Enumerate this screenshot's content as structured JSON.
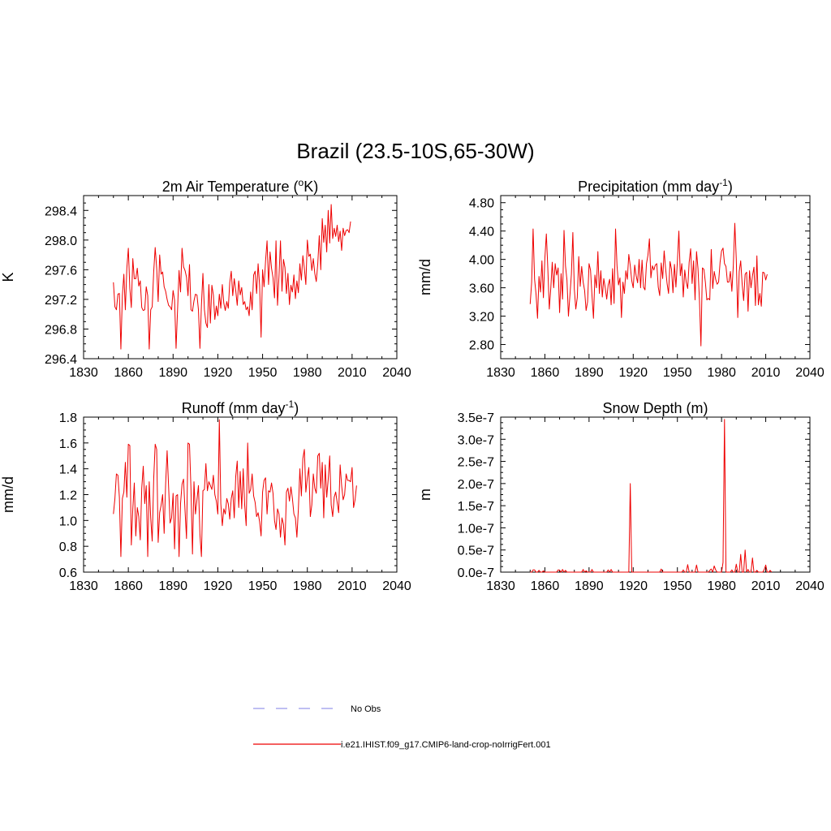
{
  "figure": {
    "title": "Brazil (23.5-10S,65-30W)"
  },
  "legend": {
    "entries": [
      {
        "label": "No Obs",
        "color": "#aaaaee",
        "style": "dashed"
      },
      {
        "label": "i.e21.IHIST.f09_g17.CMIP6-land-crop-noIrrigFert.001",
        "color": "#ee0000",
        "style": "solid"
      }
    ]
  },
  "chart_data": [
    {
      "type": "line",
      "title": "2m Air Temperature (",
      "title_sup": "o",
      "title_suffix": "K)",
      "ylabel": "K",
      "xlim": [
        1830,
        2040
      ],
      "ylim": [
        296.4,
        298.6
      ],
      "xticks": [
        1830,
        1860,
        1890,
        1920,
        1950,
        1980,
        2010,
        2040
      ],
      "xtick_labels": [
        "1830",
        "1860",
        "1890",
        "1920",
        "1950",
        "1980",
        "2010",
        "2040"
      ],
      "yticks": [
        296.4,
        296.8,
        297.2,
        297.6,
        298.0,
        298.4
      ],
      "ytick_labels": [
        "296.4",
        "296.8",
        "297.2",
        "297.6",
        "298.0",
        "298.4"
      ],
      "series": [
        {
          "color": "#ee0000",
          "x_start": 1850,
          "values": [
            297.43,
            297.1,
            297.06,
            297.27,
            297.28,
            296.53,
            297.25,
            297.54,
            297.06,
            297.62,
            297.89,
            297.35,
            297.09,
            297.75,
            297.48,
            297.48,
            297.62,
            297.38,
            297.45,
            297.09,
            297.05,
            297.06,
            297.37,
            297.25,
            296.53,
            297.06,
            297.1,
            297.57,
            297.9,
            297.62,
            297.17,
            297.8,
            297.54,
            297.57,
            297.37,
            297.31,
            297.2,
            297.12,
            297.1,
            297.06,
            297.32,
            297.19,
            296.54,
            297.06,
            297.59,
            297.3,
            297.89,
            297.64,
            297.59,
            297.5,
            297.25,
            297.67,
            297.06,
            297.04,
            297.18,
            297.27,
            297.26,
            297.06,
            296.54,
            297.12,
            297.55,
            297.06,
            296.88,
            296.82,
            297.4,
            296.88,
            297.39,
            297.26,
            296.93,
            297.11,
            296.98,
            297.27,
            297.08,
            297.4,
            297.15,
            297.05,
            297.17,
            297.08,
            297.43,
            297.58,
            297.25,
            297.48,
            297.32,
            297.12,
            297.45,
            297.26,
            297.36,
            297.13,
            297.17,
            297.06,
            297.1,
            296.98,
            297.3,
            297.06,
            297.53,
            297.58,
            297.28,
            297.68,
            297.39,
            296.69,
            297.6,
            297.37,
            297.72,
            297.99,
            297.4,
            297.84,
            297.62,
            297.49,
            297.22,
            297.99,
            297.12,
            297.51,
            297.99,
            297.31,
            297.74,
            297.63,
            297.28,
            297.55,
            297.13,
            297.39,
            297.3,
            297.53,
            297.21,
            297.45,
            297.29,
            297.68,
            297.46,
            297.79,
            297.62,
            297.4,
            298.0,
            297.78,
            297.81,
            297.59,
            297.75,
            297.55,
            297.44,
            297.68,
            298.06,
            297.6,
            298.29,
            297.97,
            298.2,
            297.84,
            298.4,
            297.96,
            298.48,
            298.02,
            298.16,
            298.05,
            298.2,
            297.98,
            298.12,
            297.86,
            298.16,
            298.06,
            298.13,
            298.14,
            298.1,
            298.25
          ]
        }
      ]
    },
    {
      "type": "line",
      "title": "Precipitation (mm day",
      "title_sup": "-1",
      "title_suffix": ")",
      "ylabel": "mm/d",
      "xlim": [
        1830,
        2040
      ],
      "ylim": [
        2.6,
        4.9
      ],
      "xticks": [
        1830,
        1860,
        1890,
        1920,
        1950,
        1980,
        2010,
        2040
      ],
      "xtick_labels": [
        "1830",
        "1860",
        "1890",
        "1920",
        "1950",
        "1980",
        "2010",
        "2040"
      ],
      "yticks": [
        2.8,
        3.2,
        3.6,
        4.0,
        4.4,
        4.8
      ],
      "ytick_labels": [
        "2.80",
        "3.20",
        "3.60",
        "4.00",
        "4.40",
        "4.80"
      ],
      "series": [
        {
          "color": "#ee0000",
          "x_start": 1850,
          "values": [
            3.37,
            3.67,
            4.43,
            3.72,
            3.51,
            3.17,
            3.76,
            3.54,
            3.98,
            3.46,
            4.02,
            4.36,
            3.87,
            3.3,
            3.59,
            3.96,
            3.6,
            3.94,
            3.78,
            3.88,
            3.25,
            3.8,
            3.44,
            4.41,
            3.91,
            3.71,
            3.2,
            3.49,
            3.79,
            4.38,
            3.58,
            3.3,
            3.46,
            4.04,
            3.62,
            3.9,
            3.68,
            3.56,
            3.28,
            3.4,
            3.94,
            3.85,
            3.49,
            3.17,
            3.78,
            3.6,
            4.11,
            3.52,
            3.84,
            3.47,
            3.73,
            3.6,
            3.44,
            3.64,
            3.72,
            3.36,
            3.87,
            3.38,
            4.43,
            3.91,
            3.64,
            3.74,
            3.18,
            3.68,
            3.52,
            3.84,
            3.72,
            4.07,
            3.91,
            3.7,
            3.6,
            3.92,
            3.77,
            3.67,
            4.0,
            3.6,
            3.99,
            3.61,
            3.57,
            3.94,
            4.06,
            4.29,
            3.74,
            3.91,
            3.85,
            3.92,
            3.94,
            3.61,
            3.49,
            3.95,
            3.73,
            4.12,
            3.87,
            3.66,
            3.52,
            3.97,
            3.86,
            3.53,
            3.93,
            3.61,
            3.97,
            4.4,
            3.77,
            3.94,
            3.47,
            3.85,
            3.68,
            3.59,
            3.96,
            4.15,
            3.66,
            3.98,
            3.43,
            4.11,
            3.87,
            3.42,
            2.78,
            3.88,
            3.86,
            3.68,
            3.43,
            3.45,
            3.43,
            4.14,
            3.59,
            3.83,
            3.72,
            3.65,
            3.68,
            3.96,
            4.12,
            4.16,
            3.94,
            3.9,
            3.68,
            3.68,
            3.83,
            3.55,
            3.92,
            4.51,
            4.0,
            3.18,
            3.83,
            3.98,
            3.65,
            3.42,
            3.79,
            3.82,
            3.27,
            3.84,
            3.6,
            3.77,
            3.89,
            3.35,
            4.05,
            3.36,
            3.52,
            3.34,
            3.82,
            3.81,
            3.71,
            3.79
          ]
        }
      ]
    },
    {
      "type": "line",
      "title": "Runoff (mm day",
      "title_sup": "-1",
      "title_suffix": ")",
      "ylabel": "mm/d",
      "xlim": [
        1830,
        2040
      ],
      "ylim": [
        0.6,
        1.8
      ],
      "xticks": [
        1830,
        1860,
        1890,
        1920,
        1950,
        1980,
        2010,
        2040
      ],
      "xtick_labels": [
        "1830",
        "1860",
        "1890",
        "1920",
        "1950",
        "1980",
        "2010",
        "2040"
      ],
      "yticks": [
        0.6,
        0.8,
        1.0,
        1.2,
        1.4,
        1.6,
        1.8
      ],
      "ytick_labels": [
        "0.6",
        "0.8",
        "1.0",
        "1.2",
        "1.4",
        "1.6",
        "1.8"
      ],
      "series": [
        {
          "color": "#ee0000",
          "x_start": 1850,
          "values": [
            1.05,
            1.17,
            1.36,
            1.35,
            1.18,
            0.72,
            1.17,
            1.22,
            1.45,
            1.18,
            1.59,
            1.58,
            0.81,
            1.09,
            1.29,
            0.88,
            1.1,
            1.03,
            0.85,
            1.25,
            1.42,
            1.13,
            1.27,
            0.72,
            1.3,
            1.02,
            0.84,
            1.32,
            1.59,
            1.55,
            0.83,
            1.06,
            1.12,
            1.2,
            0.9,
            1.28,
            1.54,
            1.26,
            0.98,
            1.02,
            1.21,
            0.78,
            1.19,
            1.2,
            0.72,
            1.13,
            1.28,
            1.32,
            1.08,
            0.86,
            1.6,
            1.59,
            1.24,
            0.74,
            1.3,
            1.05,
            1.16,
            1.27,
            0.89,
            0.72,
            1.23,
            1.24,
            1.44,
            1.23,
            1.3,
            1.27,
            1.24,
            1.35,
            1.2,
            1.15,
            1.05,
            1.78,
            1.13,
            0.96,
            1.09,
            1.05,
            1.17,
            1.13,
            1.01,
            1.17,
            1.23,
            1.02,
            1.34,
            1.46,
            1.1,
            1.38,
            1.09,
            1.4,
            1.12,
            0.96,
            1.6,
            1.21,
            1.24,
            1.36,
            1.19,
            1.14,
            1.03,
            1.06,
            0.99,
            0.88,
            1.22,
            1.31,
            1.33,
            1.05,
            1.23,
            1.22,
            1.29,
            1.21,
            1.0,
            0.93,
            1.09,
            1.05,
            0.87,
            1.02,
            0.97,
            0.81,
            1.22,
            1.25,
            1.15,
            1.26,
            1.17,
            1.05,
            1.02,
            0.87,
            1.09,
            1.4,
            1.19,
            1.48,
            1.55,
            1.22,
            1.33,
            1.41,
            1.03,
            1.12,
            1.36,
            1.25,
            1.21,
            1.5,
            1.52,
            1.25,
            1.45,
            1.02,
            1.43,
            1.18,
            1.32,
            1.5,
            1.12,
            1.03,
            1.18,
            1.22,
            1.14,
            1.06,
            1.43,
            1.27,
            1.16,
            1.2,
            1.36,
            1.31,
            1.31,
            1.3,
            1.41,
            1.1,
            1.16,
            1.27
          ]
        }
      ]
    },
    {
      "type": "line",
      "title": "Snow Depth (m)",
      "title_sup": "",
      "title_suffix": "",
      "ylabel": "m",
      "xlim": [
        1830,
        2040
      ],
      "ylim": [
        0.0,
        3.5e-07
      ],
      "xticks": [
        1830,
        1860,
        1890,
        1920,
        1950,
        1980,
        2010,
        2040
      ],
      "xtick_labels": [
        "1830",
        "1860",
        "1890",
        "1920",
        "1950",
        "1980",
        "2010",
        "2040"
      ],
      "yticks": [
        0.0,
        5e-08,
        1e-07,
        1.5e-07,
        2e-07,
        2.5e-07,
        3e-07,
        3.5e-07
      ],
      "ytick_labels": [
        "0.0e-7",
        "0.5e-7",
        "1.0e-7",
        "1.5e-7",
        "2.0e-7",
        "2.5e-7",
        "3.0e-7",
        "3.5e-7"
      ],
      "series": [
        {
          "color": "#ee0000",
          "x_start": 1850,
          "values": [
            0,
            0,
            5e-09,
            5e-09,
            0,
            0,
            4e-09,
            0,
            0,
            3e-09,
            0,
            0,
            0,
            0,
            0,
            0,
            0,
            0,
            0,
            5e-09,
            4e-09,
            0,
            6e-09,
            0,
            4e-09,
            0,
            0,
            0,
            0,
            0,
            0,
            0,
            0,
            0,
            0,
            0,
            6e-09,
            0,
            3e-09,
            0,
            0,
            0,
            6e-09,
            0,
            0,
            0,
            0,
            0,
            0,
            0,
            0,
            0,
            0,
            5e-09,
            0,
            6e-09,
            0,
            0,
            0,
            0,
            0,
            0,
            0,
            0,
            0,
            0,
            0,
            0,
            2e-07,
            0,
            0,
            0,
            0,
            0,
            0,
            0,
            0,
            0,
            0,
            0,
            0,
            0,
            0,
            0,
            0,
            0,
            0,
            0,
            0,
            7e-09,
            0,
            0,
            0,
            0,
            0,
            0,
            0,
            0,
            0,
            0,
            0,
            0,
            0,
            0,
            5e-09,
            0,
            0,
            1.7e-08,
            0,
            0,
            0,
            0,
            0,
            1.6e-08,
            0,
            0,
            0,
            0,
            0,
            0,
            0,
            0,
            4e-09,
            7e-09,
            0,
            1.4e-08,
            5e-09,
            0,
            0,
            0,
            0,
            2.2e-08,
            3.45e-07,
            0,
            0,
            0,
            0,
            5e-09,
            0,
            0,
            1.8e-08,
            0,
            0,
            4e-08,
            0,
            0,
            5e-08,
            0,
            6e-09,
            0,
            0,
            3.2e-08,
            0,
            0,
            4e-09,
            0,
            0,
            0,
            0,
            6e-09,
            1.6e-08,
            0,
            0,
            4e-09,
            0
          ]
        }
      ]
    }
  ]
}
